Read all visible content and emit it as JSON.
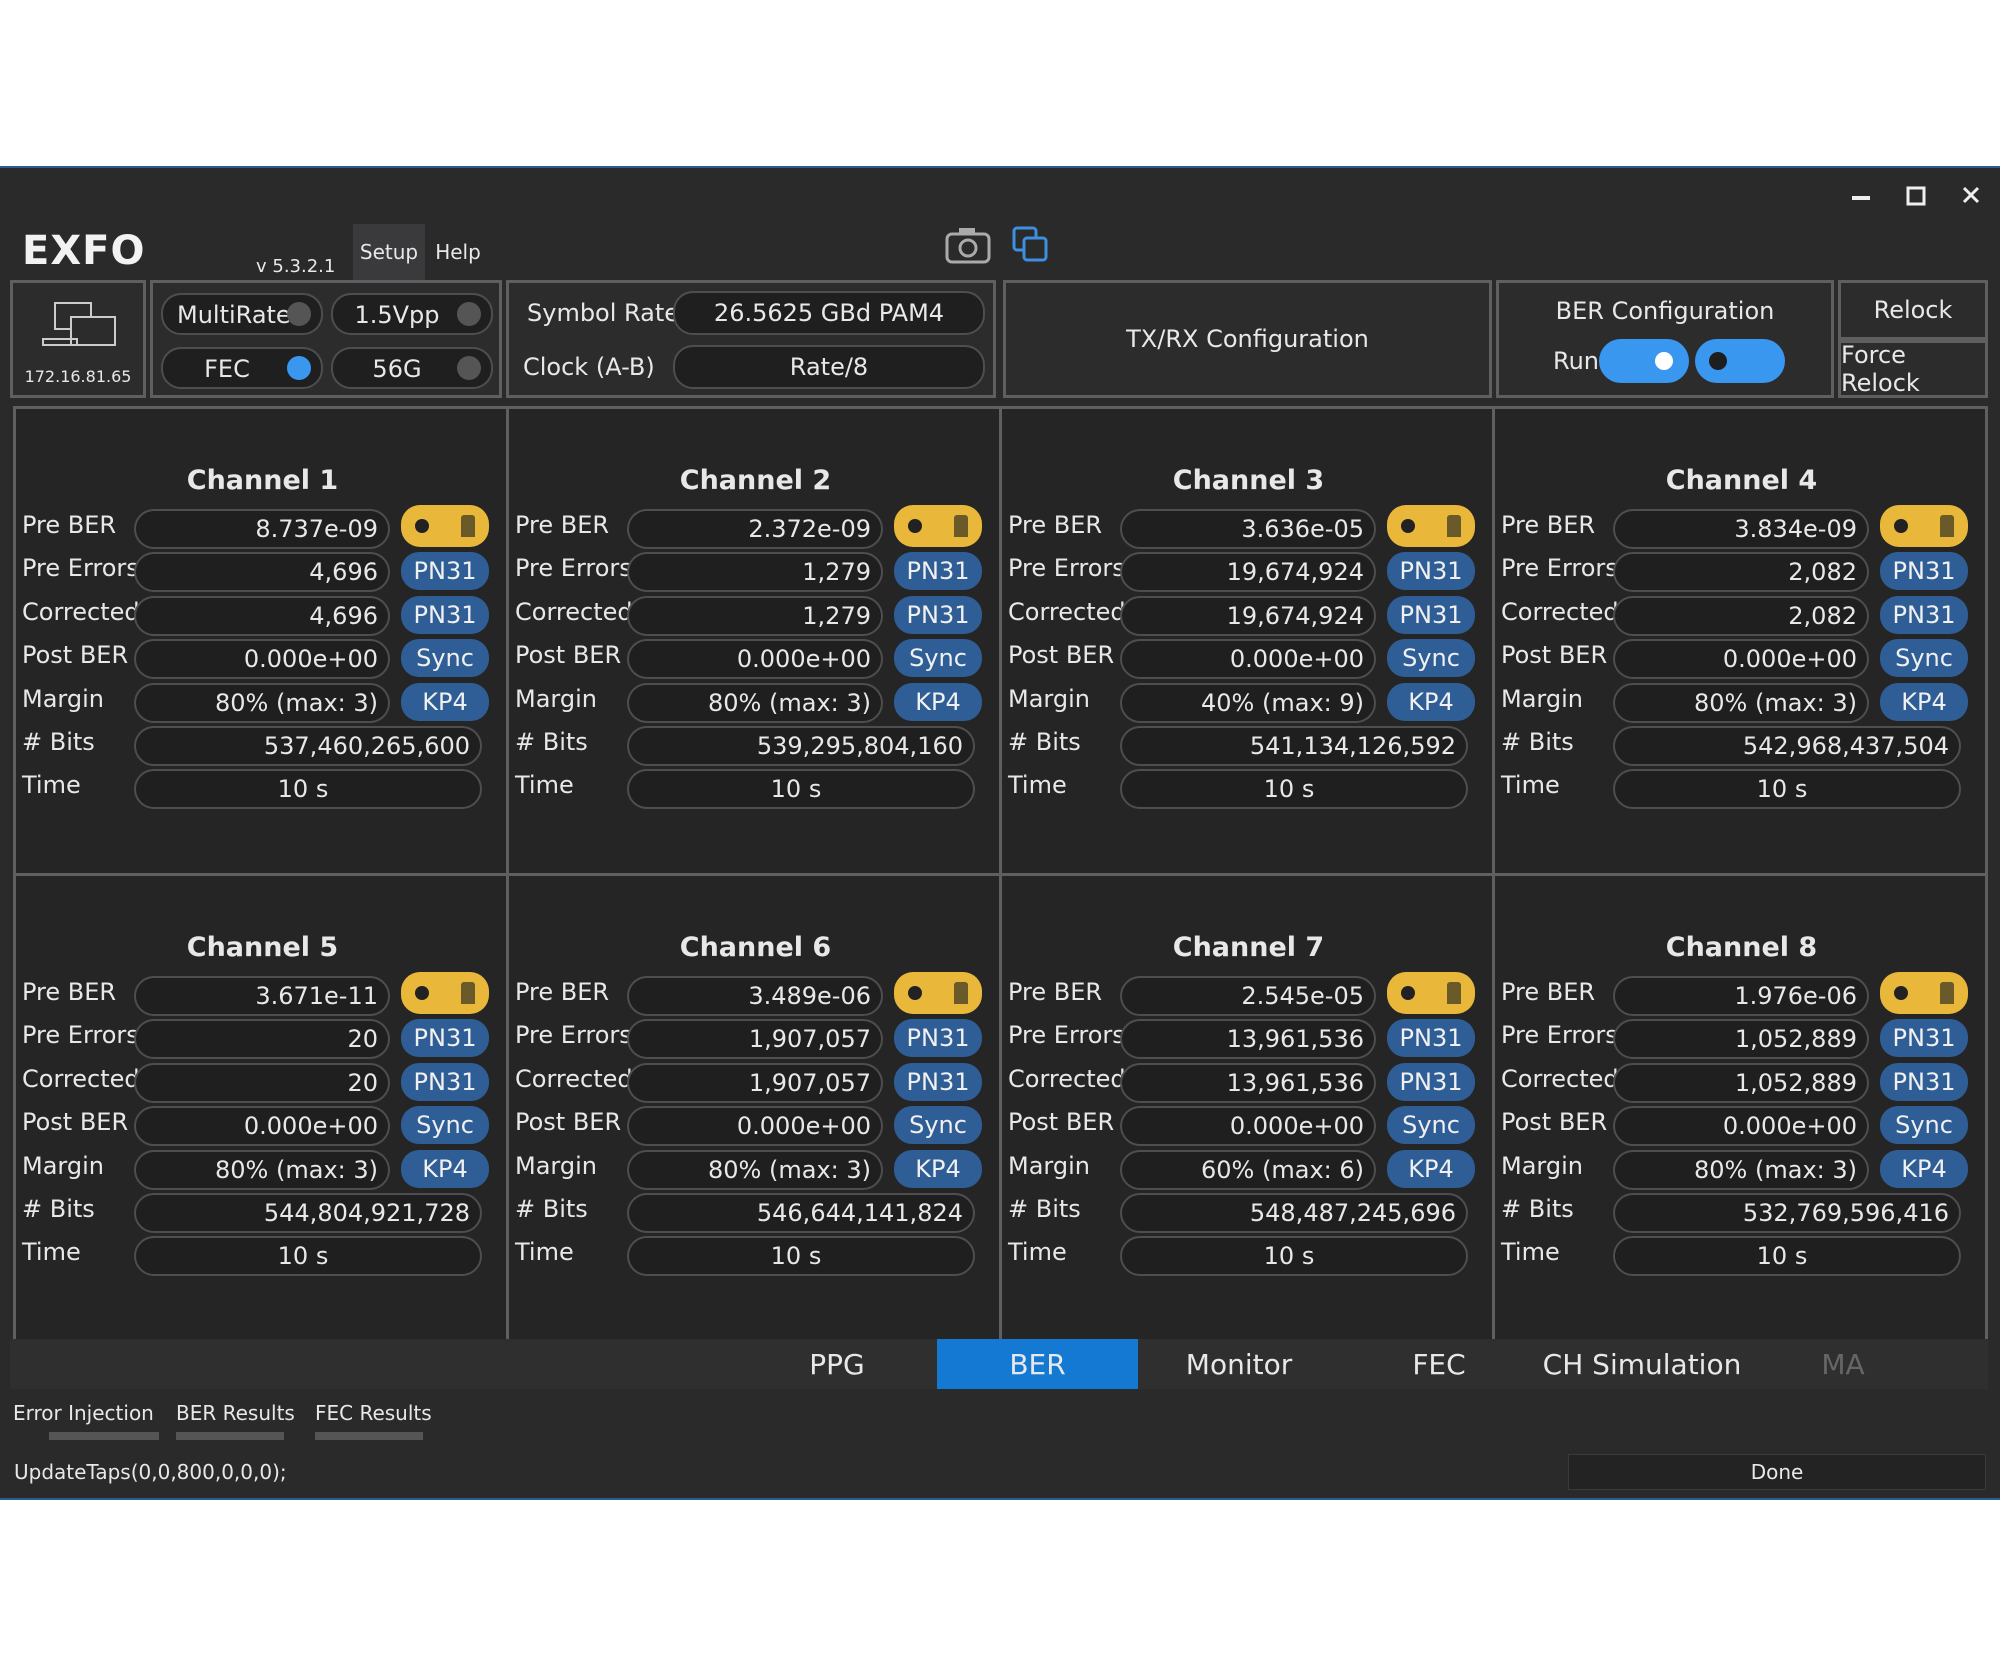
{
  "app": {
    "logo": "EXFO",
    "version": "v 5.3.2.1",
    "menu": [
      "Setup",
      "Help"
    ]
  },
  "toolbar": {
    "ip": "172.16.81.65",
    "multirate": "MultiRate",
    "vpp": "1.5Vpp",
    "fec": "FEC",
    "rate": "56G",
    "symbol_rate_label": "Symbol Rate",
    "symbol_rate": "26.5625 GBd PAM4",
    "clock_label": "Clock (A-B)",
    "clock": "Rate/8",
    "txrx": "TX/RX Configuration",
    "ber_config": "BER Configuration",
    "run": "Run",
    "relock": "Relock",
    "force_relock": "Force Relock"
  },
  "row_labels": [
    "Pre BER",
    "Pre Errors",
    "Corrected",
    "Post BER",
    "Margin",
    "# Bits",
    "Time"
  ],
  "channels": [
    {
      "name": "Channel 1",
      "values": [
        "8.737e-09",
        "4,696",
        "4,696",
        "0.000e+00",
        "80% (max: 3)",
        "537,460,265,600",
        "10 s"
      ],
      "badges": [
        "PN31",
        "PN31",
        "Sync",
        "KP4"
      ]
    },
    {
      "name": "Channel 2",
      "values": [
        "2.372e-09",
        "1,279",
        "1,279",
        "0.000e+00",
        "80% (max: 3)",
        "539,295,804,160",
        "10 s"
      ],
      "badges": [
        "PN31",
        "PN31",
        "Sync",
        "KP4"
      ]
    },
    {
      "name": "Channel 3",
      "values": [
        "3.636e-05",
        "19,674,924",
        "19,674,924",
        "0.000e+00",
        "40% (max: 9)",
        "541,134,126,592",
        "10 s"
      ],
      "badges": [
        "PN31",
        "PN31",
        "Sync",
        "KP4"
      ]
    },
    {
      "name": "Channel 4",
      "values": [
        "3.834e-09",
        "2,082",
        "2,082",
        "0.000e+00",
        "80% (max: 3)",
        "542,968,437,504",
        "10 s"
      ],
      "badges": [
        "PN31",
        "PN31",
        "Sync",
        "KP4"
      ]
    },
    {
      "name": "Channel 5",
      "values": [
        "3.671e-11",
        "20",
        "20",
        "0.000e+00",
        "80% (max: 3)",
        "544,804,921,728",
        "10 s"
      ],
      "badges": [
        "PN31",
        "PN31",
        "Sync",
        "KP4"
      ]
    },
    {
      "name": "Channel 6",
      "values": [
        "3.489e-06",
        "1,907,057",
        "1,907,057",
        "0.000e+00",
        "80% (max: 3)",
        "546,644,141,824",
        "10 s"
      ],
      "badges": [
        "PN31",
        "PN31",
        "Sync",
        "KP4"
      ]
    },
    {
      "name": "Channel 7",
      "values": [
        "2.545e-05",
        "13,961,536",
        "13,961,536",
        "0.000e+00",
        "60% (max: 6)",
        "548,487,245,696",
        "10 s"
      ],
      "badges": [
        "PN31",
        "PN31",
        "Sync",
        "KP4"
      ]
    },
    {
      "name": "Channel 8",
      "values": [
        "1.976e-06",
        "1,052,889",
        "1,052,889",
        "0.000e+00",
        "80% (max: 3)",
        "532,769,596,416",
        "10 s"
      ],
      "badges": [
        "PN31",
        "PN31",
        "Sync",
        "KP4"
      ]
    }
  ],
  "tabs": [
    "PPG",
    "BER",
    "Monitor",
    "FEC",
    "CH Simulation",
    "MA"
  ],
  "active_tab": 1,
  "subtabs": [
    "Error Injection",
    "BER Results",
    "FEC Results"
  ],
  "status": "UpdateTaps(0,0,800,0,0,0);",
  "done": "Done"
}
